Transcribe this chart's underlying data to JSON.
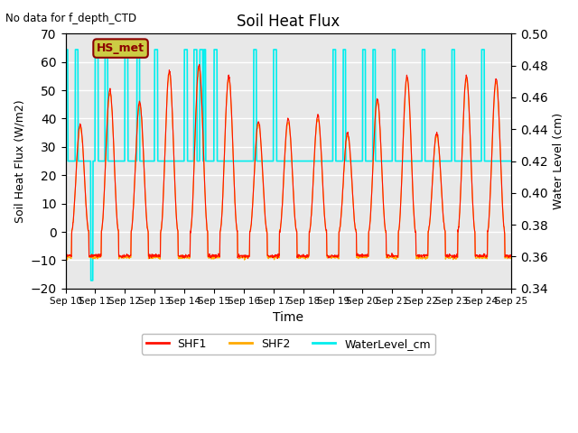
{
  "title": "Soil Heat Flux",
  "top_left_text": "No data for f_depth_CTD",
  "ylabel_left": "Soil Heat Flux (W/m2)",
  "ylabel_right": "Water Level (cm)",
  "xlabel": "Time",
  "ylim_left": [
    -20,
    70
  ],
  "ylim_right": [
    0.34,
    0.5
  ],
  "background_color": "#ffffff",
  "plot_bg_color": "#e8e8e8",
  "grid_color": "#ffffff",
  "shf1_color": "#ff1100",
  "shf2_color": "#ffaa00",
  "water_color": "#00eeee",
  "hs_met_box_facecolor": "#cccc44",
  "hs_met_box_edgecolor": "#8B0000",
  "hs_met_text": "HS_met",
  "hs_met_text_color": "#8B0000",
  "xstart_day": 10,
  "xend_day": 25,
  "num_days": 15,
  "water_baseline_cm": 0.42,
  "water_spike_cm": 0.49,
  "water_dip_cm": 0.345,
  "shf_night_val": -8.5,
  "peak_heights_shf1": [
    38,
    50,
    46,
    57,
    59,
    55,
    39,
    40,
    41,
    35,
    47,
    55,
    35,
    55,
    54
  ],
  "peak_heights_shf2": [
    37,
    49,
    45,
    56,
    58,
    54,
    38,
    39,
    40,
    34,
    46,
    54,
    34,
    54,
    53
  ],
  "shf_deep_valleys": [
    19,
    20
  ],
  "shf_deep_valley_val": -18,
  "legend_labels": [
    "SHF1",
    "SHF2",
    "WaterLevel_cm"
  ]
}
